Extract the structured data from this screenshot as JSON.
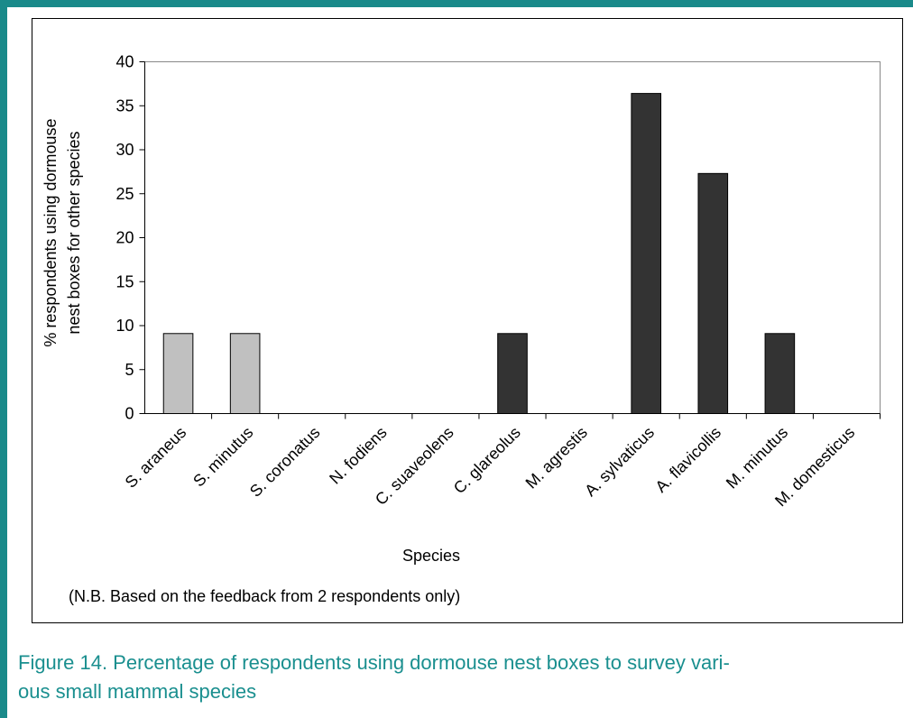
{
  "chart_data": {
    "type": "bar",
    "ylabel": [
      "% respondents using dormouse",
      "nest boxes for other species"
    ],
    "xlabel": "Species",
    "note": "(N.B. Based on the feedback from 2 respondents only)",
    "categories": [
      "S. araneus",
      "S. minutus",
      "S. coronatus",
      "N. fodiens",
      "C. suaveolens",
      "C. glareolus",
      "M. agrestis",
      "A. sylvaticus",
      "A. flavicollis",
      "M. minutus",
      "M. domesticus"
    ],
    "values": [
      9.1,
      9.1,
      0,
      0,
      0,
      9.1,
      0,
      36.4,
      27.3,
      9.1,
      0
    ],
    "colors": [
      "#c0c0c0",
      "#c0c0c0",
      "#333333",
      "#333333",
      "#333333",
      "#333333",
      "#333333",
      "#333333",
      "#333333",
      "#333333",
      "#333333"
    ],
    "ylim": [
      0,
      40
    ],
    "yticks": [
      0,
      5,
      10,
      15,
      20,
      25,
      30,
      35,
      40
    ],
    "grid": false
  },
  "caption": [
    "Figure 14. Percentage of respondents using dormouse nest boxes to survey vari-",
    "ous small mammal species"
  ]
}
